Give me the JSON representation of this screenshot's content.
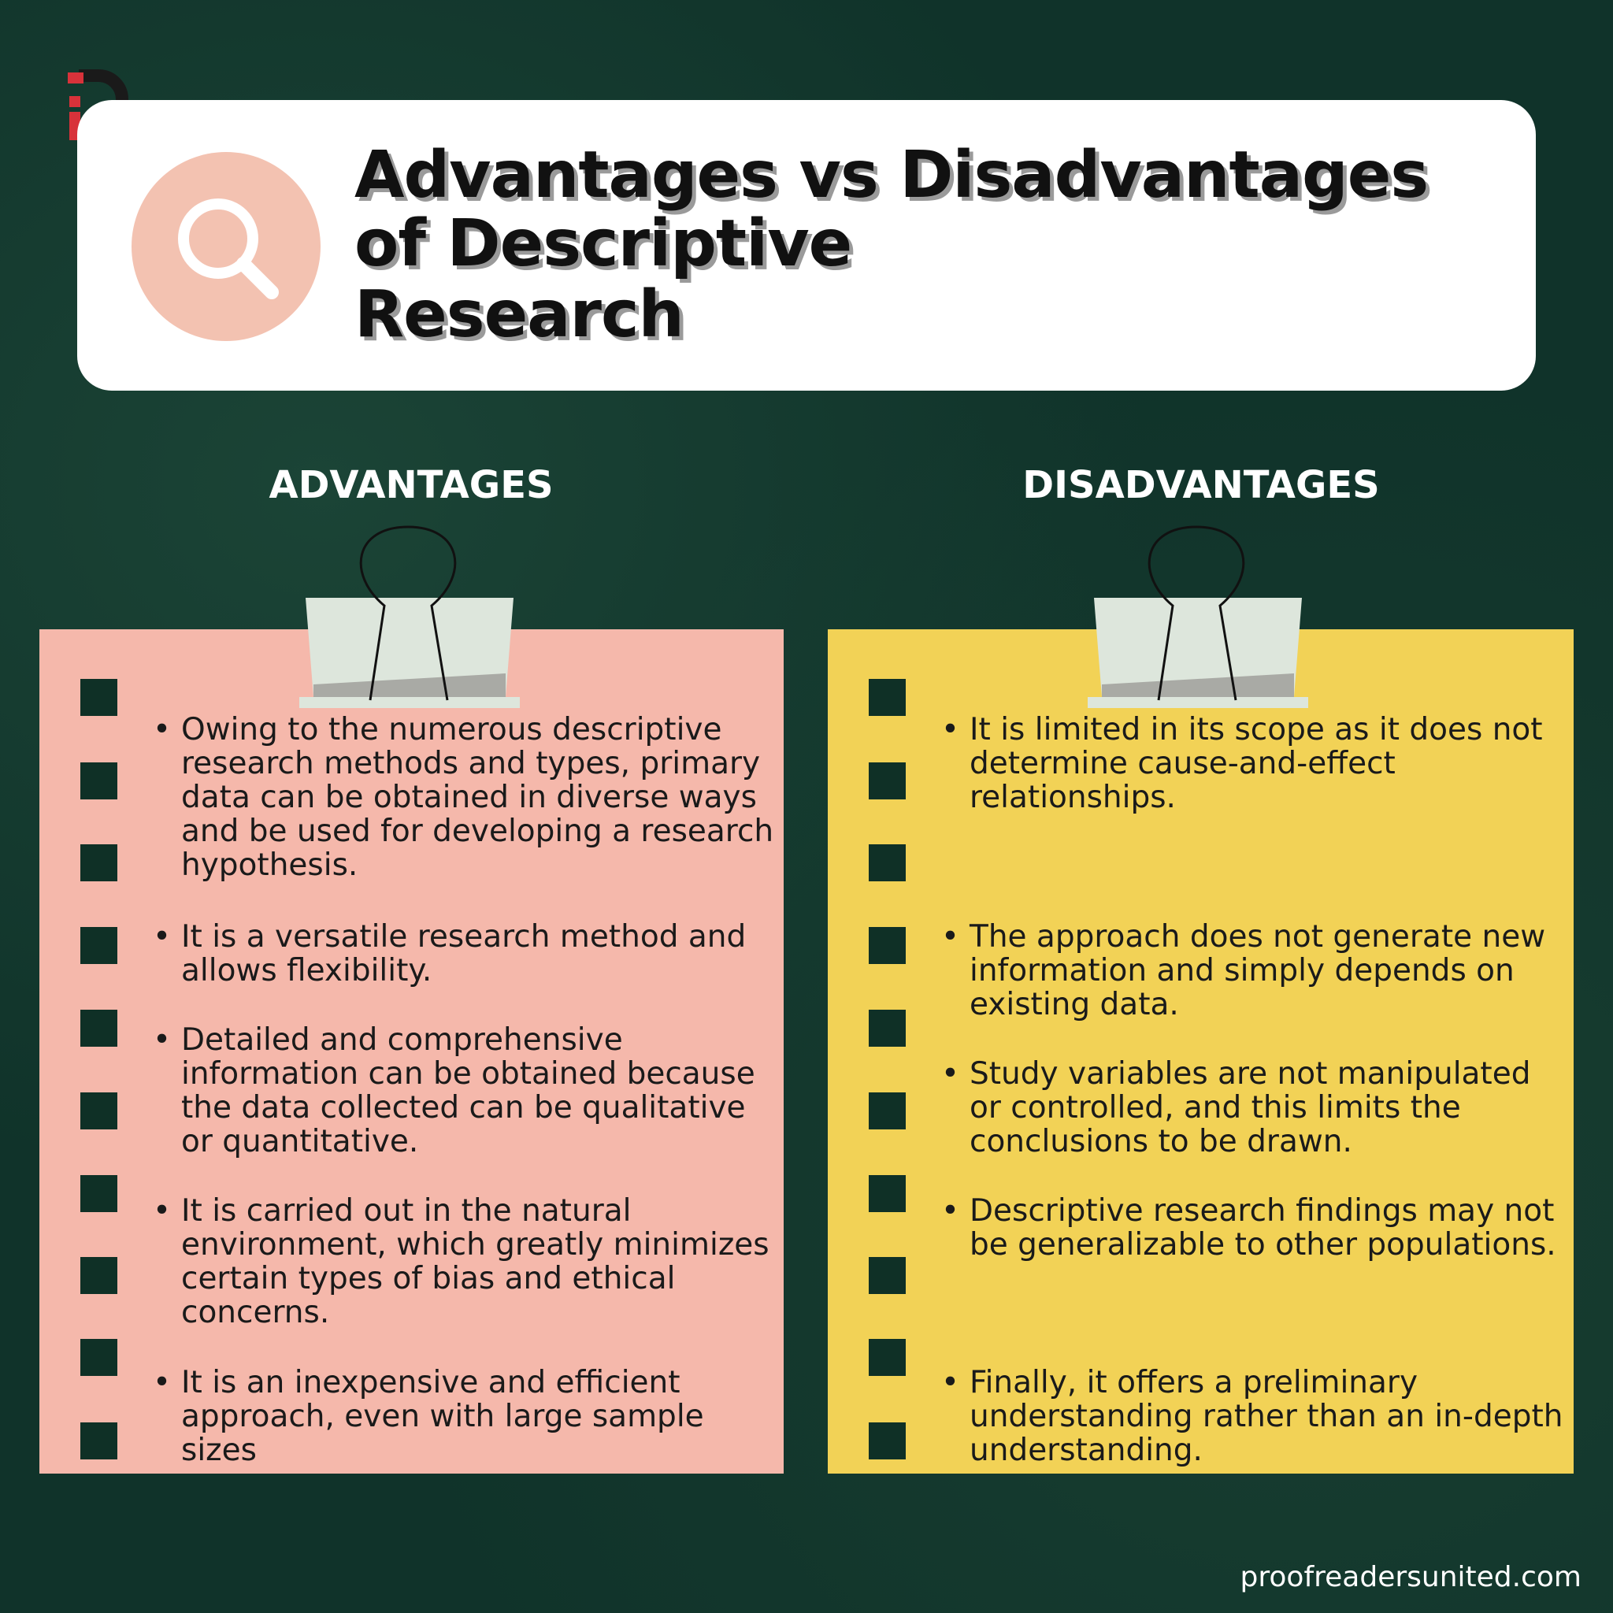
{
  "header": {
    "title": [
      "Advantages vs Disadvantages",
      "of Descriptive",
      "Research"
    ]
  },
  "advantages": {
    "heading": "ADVANTAGES",
    "items": [
      "Owing to the numerous descriptive research methods and types, primary data can be obtained in diverse ways and be used for developing a research hypothesis.",
      "It is a versatile research method and allows flexibility.",
      "Detailed and comprehensive information can be obtained because the data collected can be qualitative or quantitative.",
      "It is carried out in the natural environment, which greatly minimizes certain types of bias and ethical concerns.",
      "It is an inexpensive and efficient approach, even with large sample sizes"
    ]
  },
  "disadvantages": {
    "heading": "DISADVANTAGES",
    "items": [
      "It is limited in its scope as it does not determine cause-and-effect relationships.",
      "The approach does not generate new information and simply depends on existing data.",
      "Study variables are not manipulated or controlled, and this limits the conclusions to be drawn.",
      "Descriptive research findings may not be generalizable to other populations.",
      "Finally, it offers a preliminary understanding rather than an in-depth understanding."
    ]
  },
  "footer": {
    "website": "proofreadersunited.com"
  }
}
